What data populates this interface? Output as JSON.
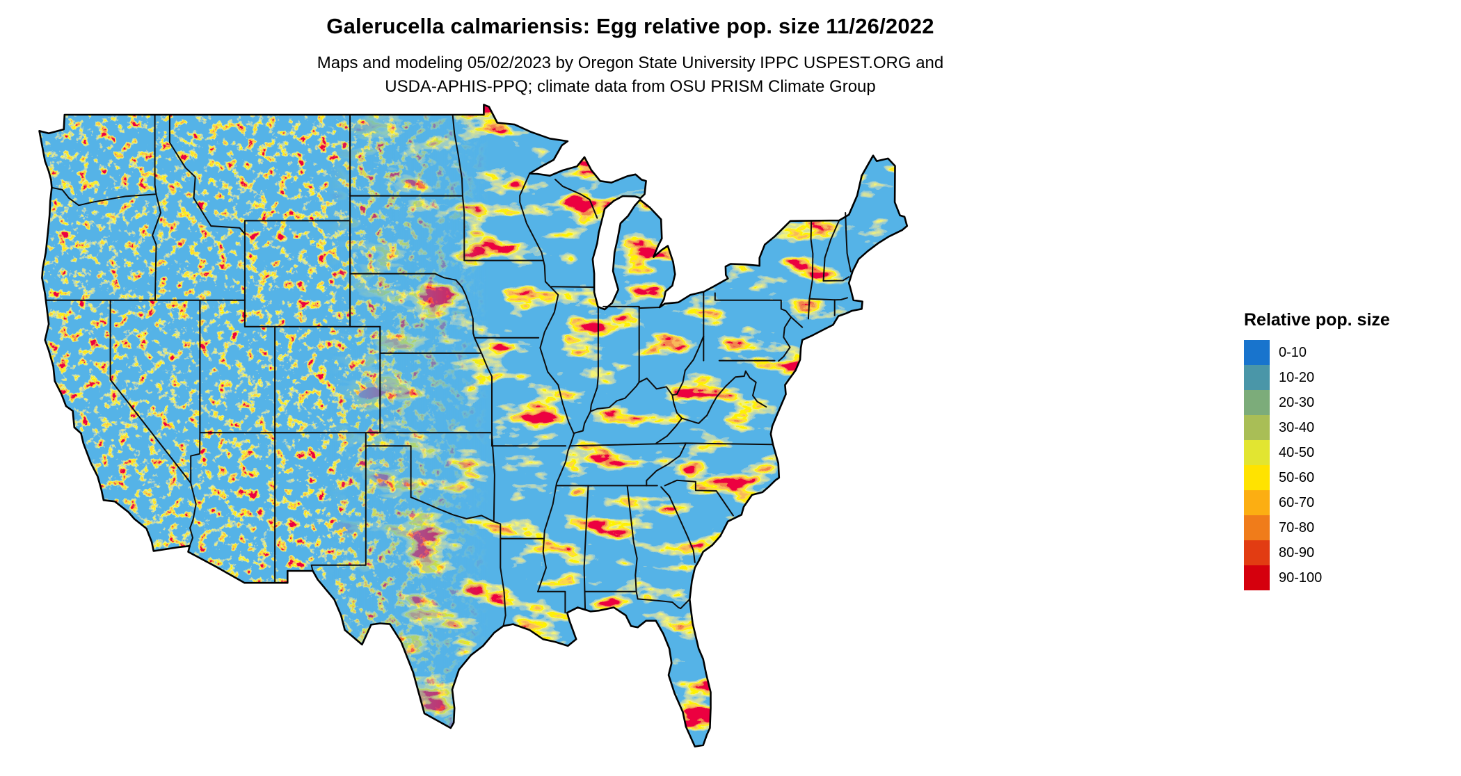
{
  "page": {
    "background": "#ffffff"
  },
  "header": {
    "title": "Galerucella calmariensis: Egg relative pop. size 11/26/2022",
    "subtitle_line1": "Maps and modeling 05/02/2023 by Oregon State University IPPC USPEST.ORG and",
    "subtitle_line2": "USDA-APHIS-PPQ; climate data from OSU PRISM Climate Group"
  },
  "map": {
    "region_depicted": "Continental United States",
    "kind": "raster population-size model map with state borders",
    "border_color": "#000000",
    "dominant_fill": "#1874CD"
  },
  "legend": {
    "title": "Relative pop. size",
    "items": [
      {
        "label": "0-10",
        "color": "#1874CD"
      },
      {
        "label": "10-20",
        "color": "#4A96A8"
      },
      {
        "label": "20-30",
        "color": "#7CAC7A"
      },
      {
        "label": "30-40",
        "color": "#A9BE56"
      },
      {
        "label": "40-50",
        "color": "#E2E531"
      },
      {
        "label": "50-60",
        "color": "#FFE300"
      },
      {
        "label": "60-70",
        "color": "#FCAE12"
      },
      {
        "label": "70-80",
        "color": "#F07C1A"
      },
      {
        "label": "80-90",
        "color": "#E23C12"
      },
      {
        "label": "90-100",
        "color": "#D5000D"
      }
    ]
  }
}
